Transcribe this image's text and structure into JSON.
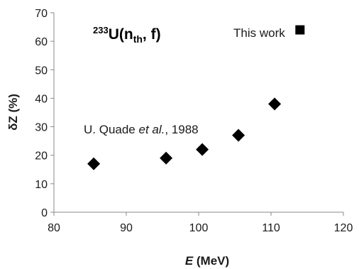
{
  "chart_data": {
    "type": "scatter",
    "title": {
      "sup": "233",
      "main": "U(n",
      "sub": "th",
      "tail": ", f)"
    },
    "xlabel": {
      "italic": "E",
      "rest": " (MeV)"
    },
    "ylabel": "δZ (%)",
    "xlim": [
      80,
      120
    ],
    "ylim": [
      0,
      70
    ],
    "xticks": [
      80,
      90,
      100,
      110,
      120
    ],
    "yticks": [
      0,
      10,
      20,
      30,
      40,
      50,
      60,
      70
    ],
    "grid": false,
    "series": [
      {
        "name": "U. Quade et al., 1988",
        "marker": "diamond",
        "color": "#000000",
        "x": [
          85.5,
          95.5,
          100.5,
          105.5,
          110.5
        ],
        "y": [
          17,
          19,
          22,
          27,
          38
        ]
      },
      {
        "name": "This work",
        "marker": "square",
        "color": "#000000",
        "x": [
          114
        ],
        "y": [
          64
        ]
      }
    ],
    "annotations": {
      "quade": {
        "prefix": "U. Quade ",
        "italic": "et al.",
        "suffix": ", 1988"
      },
      "this_work": "This work"
    }
  }
}
